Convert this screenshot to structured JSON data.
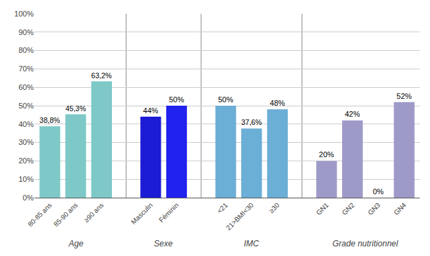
{
  "chart_data": {
    "type": "bar",
    "categories": [
      "80-85 ans",
      "85-90 ans",
      "≥90 ans",
      "Masculin",
      "Féminin",
      "<21",
      "21>BMI<30",
      "≥30",
      "GN1",
      "GN2",
      "GN3",
      "GN4"
    ],
    "values": [
      38.8,
      45.3,
      63.2,
      44.0,
      50.0,
      50.0,
      37.6,
      48.0,
      20.0,
      42.0,
      0.0,
      52.0
    ],
    "value_labels": [
      "38,8%",
      "45,3%",
      "63,2%",
      "44%",
      "50%",
      "50%",
      "37,6%",
      "48%",
      "20%",
      "42%",
      "0%",
      "52%"
    ],
    "colors": [
      "#7EC8C8",
      "#7EC8C8",
      "#7EC8C8",
      "#1C1CD4",
      "#2222EE",
      "#6BAED6",
      "#6BAED6",
      "#6BAED6",
      "#9E9AC8",
      "#9E9AC8",
      "#9E9AC8",
      "#9E9AC8"
    ],
    "groups": [
      {
        "name": "Age",
        "count": 3
      },
      {
        "name": "Sexe",
        "count": 2
      },
      {
        "name": "IMC",
        "count": 3
      },
      {
        "name": "Grade nutritionnel",
        "count": 4
      }
    ],
    "data_labels": true,
    "ylim": [
      0,
      100
    ],
    "yticks": [
      {
        "value": 0,
        "label": "0%"
      },
      {
        "value": 10,
        "label": "10%"
      },
      {
        "value": 20,
        "label": "20%"
      },
      {
        "value": 30,
        "label": "30%"
      },
      {
        "value": 40,
        "label": "40%"
      },
      {
        "value": 50,
        "label": "50%"
      },
      {
        "value": 60,
        "label": "60%"
      },
      {
        "value": 70,
        "label": "70%"
      },
      {
        "value": 80,
        "label": "80%"
      },
      {
        "value": 90,
        "label": "90%"
      },
      {
        "value": 100,
        "label": "100%"
      }
    ],
    "grid": true
  }
}
